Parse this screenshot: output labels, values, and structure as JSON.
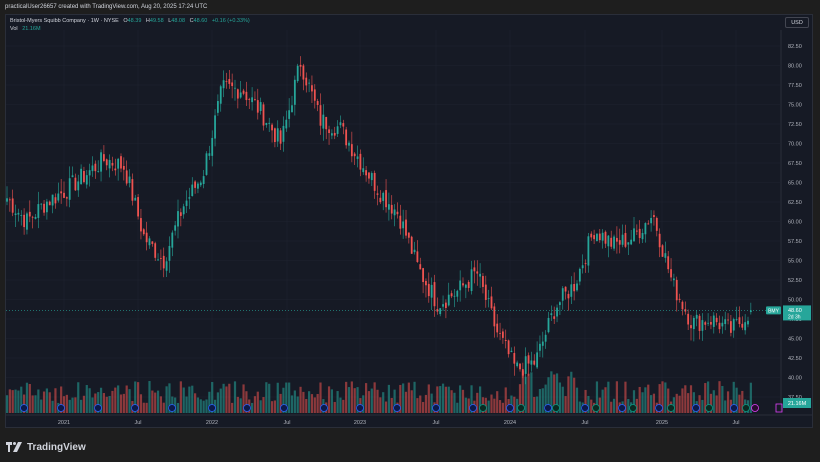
{
  "header": {
    "attribution": "practicalUser26657 created with TradingView.com, Aug 20, 2025 17:24 UTC"
  },
  "legend": {
    "symbol_line": "Bristol-Myers Squibb Company · 1W · NYSE",
    "open_label": "O",
    "open": "48.39",
    "high_label": "H",
    "high": "49.58",
    "low_label": "L",
    "low": "48.08",
    "close_label": "C",
    "close": "48.60",
    "change": "+0.16 (+0.33%)",
    "volume_label": "Vol",
    "volume": "21.16M"
  },
  "price_scale": {
    "currency": "USD",
    "ticks": [
      "82.50",
      "80.00",
      "77.50",
      "75.00",
      "72.50",
      "70.00",
      "67.50",
      "65.00",
      "62.50",
      "60.00",
      "57.50",
      "55.00",
      "52.50",
      "50.00",
      "47.50",
      "45.00",
      "42.50",
      "40.00",
      "37.50"
    ],
    "last_price_symbol": "BMY",
    "last_price": "48.60",
    "countdown": "2d 3h",
    "volume_badge": "21.16M"
  },
  "time_scale": {
    "ticks": [
      "2021",
      "Jul",
      "2022",
      "Jul",
      "2023",
      "Jul",
      "2024",
      "Jul",
      "2025",
      "Jul"
    ]
  },
  "footer": {
    "brand": "TradingView"
  },
  "colors": {
    "up": "#26a69a",
    "down": "#ef5350",
    "background": "#161a25",
    "grid": "#232632",
    "dividend_badge": "#2962ff",
    "earnings_badge": "#089981",
    "split_badge": "#e040fb"
  },
  "chart_data": {
    "type": "candlestick",
    "title": "Bristol-Myers Squibb Company · 1W · NYSE",
    "ylabel": "Price (USD)",
    "ylim": [
      36,
      84
    ],
    "x_ticks": [
      "2021",
      "Jul 2021",
      "2022",
      "Jul 2022",
      "2023",
      "Jul 2023",
      "2024",
      "Jul 2024",
      "2025",
      "Jul 2025"
    ],
    "approx_path": [
      {
        "x": "Nov 2020",
        "close": 63.0
      },
      {
        "x": "Dec 2020",
        "close": 60.0
      },
      {
        "x": "Jan 2021",
        "close": 62.5
      },
      {
        "x": "Mar 2021",
        "close": 64.0
      },
      {
        "x": "May 2021",
        "close": 66.0
      },
      {
        "x": "Jul 2021",
        "close": 68.0
      },
      {
        "x": "Aug 2021",
        "close": 67.0
      },
      {
        "x": "Oct 2021",
        "close": 58.0
      },
      {
        "x": "Nov 2021",
        "close": 55.0
      },
      {
        "x": "Dec 2021",
        "close": 62.0
      },
      {
        "x": "Feb 2022",
        "close": 66.0
      },
      {
        "x": "Apr 2022",
        "close": 77.0
      },
      {
        "x": "Jun 2022",
        "close": 77.0
      },
      {
        "x": "Jul 2022",
        "close": 74.0
      },
      {
        "x": "Sep 2022",
        "close": 70.0
      },
      {
        "x": "Nov 2022",
        "close": 80.5
      },
      {
        "x": "Dec 2022",
        "close": 73.0
      },
      {
        "x": "Feb 2023",
        "close": 72.0
      },
      {
        "x": "Apr 2023",
        "close": 68.0
      },
      {
        "x": "Jun 2023",
        "close": 64.0
      },
      {
        "x": "Aug 2023",
        "close": 61.0
      },
      {
        "x": "Oct 2023",
        "close": 54.0
      },
      {
        "x": "Nov 2023",
        "close": 49.5
      },
      {
        "x": "Jan 2024",
        "close": 51.0
      },
      {
        "x": "Feb 2024",
        "close": 53.5
      },
      {
        "x": "Apr 2024",
        "close": 46.0
      },
      {
        "x": "Jun 2024",
        "close": 41.0
      },
      {
        "x": "Jul 2024",
        "close": 42.0
      },
      {
        "x": "Aug 2024",
        "close": 49.0
      },
      {
        "x": "Oct 2024",
        "close": 52.0
      },
      {
        "x": "Nov 2024",
        "close": 59.0
      },
      {
        "x": "Dec 2024",
        "close": 57.0
      },
      {
        "x": "Feb 2025",
        "close": 58.0
      },
      {
        "x": "Mar 2025",
        "close": 61.0
      },
      {
        "x": "Apr 2025",
        "close": 52.0
      },
      {
        "x": "May 2025",
        "close": 47.0
      },
      {
        "x": "Jun 2025",
        "close": 47.5
      },
      {
        "x": "Jul 2025",
        "close": 46.0
      },
      {
        "x": "Aug 2025",
        "close": 48.6
      }
    ],
    "last": {
      "open": 48.39,
      "high": 49.58,
      "low": 48.08,
      "close": 48.6,
      "change": 0.16,
      "change_pct": 0.33,
      "volume": "21.16M"
    },
    "series": [
      {
        "name": "BMY price",
        "type": "candlestick"
      },
      {
        "name": "Volume",
        "type": "bar"
      }
    ],
    "grid": true,
    "legend_position": "top-left"
  }
}
